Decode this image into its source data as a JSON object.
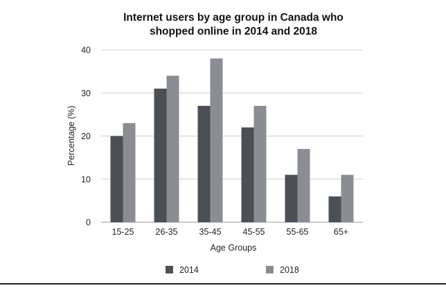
{
  "chart_data": {
    "type": "bar",
    "title_lines": [
      "Internet users by age group in Canada who",
      "shopped online in 2014 and 2018"
    ],
    "xlabel": "Age Groups",
    "ylabel": "Percentage (%)",
    "categories": [
      "15-25",
      "26-35",
      "35-45",
      "45-55",
      "55-65",
      "65+"
    ],
    "ylim": [
      0,
      40
    ],
    "yticks": [
      0,
      10,
      20,
      30,
      40
    ],
    "series": [
      {
        "name": "2014",
        "color": "#4b4f56",
        "values": [
          20,
          31,
          27,
          22,
          11,
          6
        ]
      },
      {
        "name": "2018",
        "color": "#8a8d93",
        "values": [
          23,
          34,
          38,
          27,
          17,
          11
        ]
      }
    ],
    "grid": true,
    "legend_position": "bottom"
  }
}
